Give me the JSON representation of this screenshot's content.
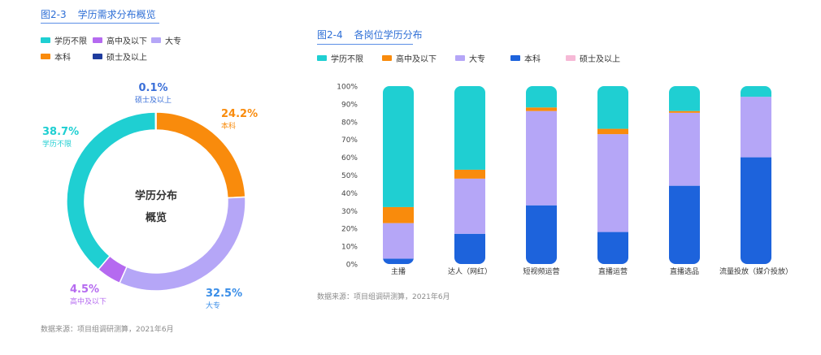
{
  "left_panel": {
    "fig_no": "图2-3",
    "title": "学历需求分布概览",
    "center_line1": "学历分布",
    "center_line2": "概览",
    "source": "数据来源：项目组调研测算，2021年6月"
  },
  "right_panel": {
    "fig_no": "图2-4",
    "title": "各岗位学历分布",
    "source": "数据来源：项目组调研测算，2021年6月"
  },
  "colors": {
    "teal": "#1fcfd2",
    "orange": "#f98b0c",
    "lavender": "#b5a6f7",
    "purple": "#b56af0",
    "blue": "#1d63dc",
    "navy": "#1f3c9e",
    "pink": "#f6b9d6",
    "title_blue": "#2f6fd6"
  },
  "chart_data": [
    {
      "type": "pie",
      "title": "学历需求分布概览",
      "donut": true,
      "legend": [
        "学历不限",
        "高中及以下",
        "大专",
        "本科",
        "硕士及以上"
      ],
      "slices": [
        {
          "label": "本科",
          "value": 24.2,
          "display": "24.2%",
          "color": "#f98b0c"
        },
        {
          "label": "大专",
          "value": 32.5,
          "display": "32.5%",
          "color": "#b5a6f7"
        },
        {
          "label": "高中及以下",
          "value": 4.5,
          "display": "4.5%",
          "color": "#b56af0"
        },
        {
          "label": "学历不限",
          "value": 38.7,
          "display": "38.7%",
          "color": "#1fcfd2"
        },
        {
          "label": "硕士及以上",
          "value": 0.1,
          "display": "0.1%",
          "color": "#1f3c9e"
        }
      ]
    },
    {
      "type": "bar",
      "stacked": true,
      "title": "各岗位学历分布",
      "categories": [
        "主播",
        "达人（网红）",
        "短视频运营",
        "直播运营",
        "直播选品",
        "流量投放（媒介投放）"
      ],
      "yticks": [
        "0%",
        "10%",
        "20%",
        "30%",
        "40%",
        "50%",
        "60%",
        "70%",
        "80%",
        "90%",
        "100%"
      ],
      "ylim": [
        0,
        100
      ],
      "series": [
        {
          "name": "本科",
          "color": "#1d63dc",
          "values": [
            3,
            17,
            33,
            18,
            44,
            60
          ]
        },
        {
          "name": "硕士及以上",
          "color": "#f6b9d6",
          "values": [
            0,
            0,
            0,
            0,
            0,
            0
          ]
        },
        {
          "name": "大专",
          "color": "#b5a6f7",
          "values": [
            20,
            31,
            53,
            55,
            41,
            34
          ]
        },
        {
          "name": "高中及以下",
          "color": "#f98b0c",
          "values": [
            9,
            5,
            2,
            3,
            1,
            0
          ]
        },
        {
          "name": "学历不限",
          "color": "#1fcfd2",
          "values": [
            68,
            47,
            12,
            24,
            14,
            6
          ]
        }
      ],
      "legend": [
        "学历不限",
        "高中及以下",
        "大专",
        "本科",
        "硕士及以上"
      ]
    }
  ]
}
